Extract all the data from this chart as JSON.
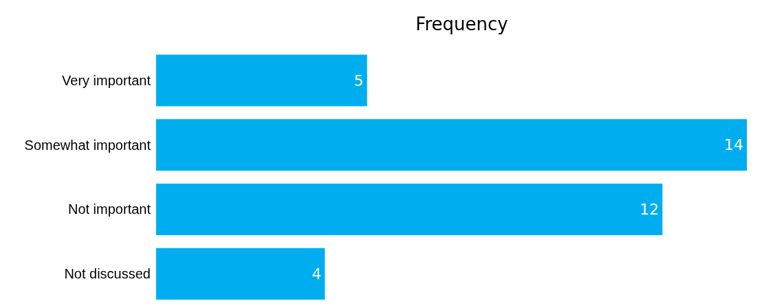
{
  "chart_data": {
    "type": "bar",
    "orientation": "horizontal",
    "title": "Frequency",
    "categories": [
      "Very important",
      "Somewhat important",
      "Not important",
      "Not discussed"
    ],
    "values": [
      5,
      14,
      12,
      4
    ],
    "color": "#00aeef",
    "data_labels": true
  }
}
